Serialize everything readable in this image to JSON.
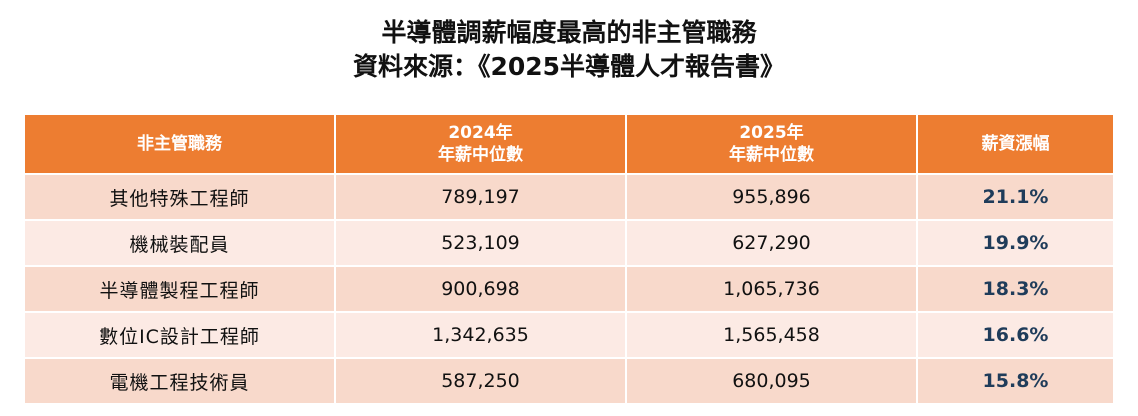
{
  "title": "半導體調薪幅度最高的非主管職務",
  "subtitle": "資料來源：《2025半導體人才報告書》",
  "colors": {
    "header_bg": "#ed7d31",
    "row_odd": "#f8d9cb",
    "row_even": "#fceae4",
    "rate_text": "#1f3c5a"
  },
  "chart_data": {
    "type": "table",
    "columns": [
      {
        "lines": [
          "非主管職務"
        ]
      },
      {
        "lines": [
          "2024年",
          "年薪中位數"
        ]
      },
      {
        "lines": [
          "2025年",
          "年薪中位數"
        ]
      },
      {
        "lines": [
          "薪資漲幅"
        ]
      }
    ],
    "rows": [
      [
        "其他特殊工程師",
        "789,197",
        "955,896",
        "21.1%"
      ],
      [
        "機械裝配員",
        "523,109",
        "627,290",
        "19.9%"
      ],
      [
        "半導體製程工程師",
        "900,698",
        "1,065,736",
        "18.3%"
      ],
      [
        "數位IC設計工程師",
        "1,342,635",
        "1,565,458",
        "16.6%"
      ],
      [
        "電機工程技術員",
        "587,250",
        "680,095",
        "15.8%"
      ]
    ]
  }
}
